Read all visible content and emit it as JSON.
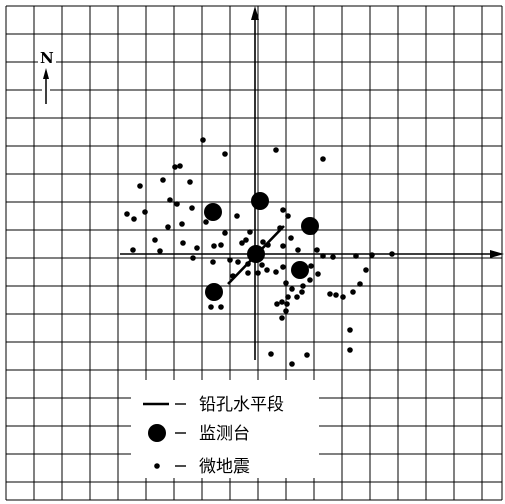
{
  "north_label": "N",
  "legend": {
    "borehole_label": "铅孔水平段",
    "station_label": "监测台",
    "microquake_label": "微地震"
  },
  "colors": {
    "ink": "#000000",
    "grid": "#000000",
    "background": "#ffffff"
  },
  "icons": {
    "north": "north-arrow-icon",
    "axis": "arrowhead-icon"
  }
}
